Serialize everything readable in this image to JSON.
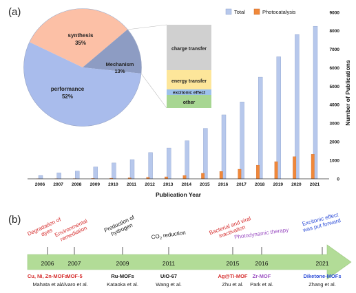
{
  "panel_a": {
    "label": "(a)"
  },
  "panel_b": {
    "label": "(b)"
  },
  "chart_data": [
    {
      "type": "bar",
      "categories": [
        "2006",
        "2007",
        "2008",
        "2009",
        "2010",
        "2011",
        "2012",
        "2013",
        "2014",
        "2015",
        "2016",
        "2017",
        "2018",
        "2019",
        "2020",
        "2021"
      ],
      "series": [
        {
          "name": "Total",
          "values": [
            180,
            320,
            420,
            640,
            860,
            1040,
            1420,
            1670,
            2060,
            2730,
            3460,
            4160,
            5500,
            6600,
            7800,
            8250
          ],
          "color": "#b7c8ec"
        },
        {
          "name": "Photocatalysis",
          "values": [
            5,
            10,
            15,
            22,
            35,
            55,
            80,
            110,
            180,
            300,
            400,
            520,
            740,
            930,
            1200,
            1330
          ],
          "color": "#f0883a"
        }
      ],
      "xlabel": "Publication Year",
      "ylabel": "Number of Publications",
      "ylim": [
        0,
        9000
      ],
      "yticks": [
        "0",
        "1000",
        "2000",
        "3000",
        "4000",
        "5000",
        "6000",
        "7000",
        "8000",
        "9000"
      ],
      "y_axis_side": "right",
      "legend_placement": "top-right",
      "grid": false
    },
    {
      "type": "pie",
      "slices": [
        {
          "label": "synthesis",
          "pct_label": "35%",
          "value": 35,
          "color": "#fcc0a6"
        },
        {
          "label": "Mechanism",
          "pct_label": "13%",
          "value": 13,
          "color": "#8d9cc3"
        },
        {
          "label": "performance",
          "pct_label": "52%",
          "value": 52,
          "color": "#a9bcec"
        }
      ]
    },
    {
      "type": "bar",
      "stacked": true,
      "breakdown_of": "Mechanism",
      "segments": [
        {
          "label": "charge transfer",
          "color": "#d0d0d0"
        },
        {
          "label": "energy transfer",
          "color": "#fde69a"
        },
        {
          "label": "excitonic effect",
          "color": "#9dc1ea"
        },
        {
          "label": "other",
          "color": "#a7d692"
        }
      ]
    }
  ],
  "timeline": {
    "arrow_color": "#b2dc97",
    "events": [
      {
        "year": "2006",
        "top_text": [
          "Degradation of",
          "dyes"
        ],
        "top_color": "#d62f2f",
        "mof": "Cu, Ni, Zn-MOFs",
        "mof_color": "#d62f2f",
        "author": "Mahata et al."
      },
      {
        "year": "2007",
        "top_text": [
          "Environmental",
          "remediation"
        ],
        "top_color": "#d62f2f",
        "mof": "MOF-5",
        "mof_color": "#d62f2f",
        "author": "Alvaro et al."
      },
      {
        "year": "2009",
        "top_text": [
          "Production of",
          "hydrogen"
        ],
        "top_color": "#111111",
        "mof": "Ru-MOFs",
        "mof_color": "#111111",
        "author": "Kataoka et al."
      },
      {
        "year": "2011",
        "top_text": [
          "CO",
          "2",
          " reduction"
        ],
        "top_color": "#111111",
        "mof": "UiO-67",
        "mof_color": "#111111",
        "author": "Wang et al."
      },
      {
        "year": "2015",
        "top_text": [
          "Bacterial and viral",
          "inactivation"
        ],
        "top_color": "#d62f2f",
        "mof": "Ag@Ti-MOF",
        "mof_color": "#d62f2f",
        "author": "Zhu et al."
      },
      {
        "year": "2016",
        "top_text": [
          "Photodynamic therapy"
        ],
        "top_color": "#9b4fc2",
        "mof": "Zr-MOF",
        "mof_color": "#9b4fc2",
        "author": "Park et al."
      },
      {
        "year": "2021",
        "top_text": [
          "Excitonic effect",
          "was put forward"
        ],
        "top_color": "#2f4fd8",
        "mof": "Diketone-MOFs",
        "mof_color": "#2f4fd8",
        "author": "Zhang et al."
      }
    ]
  }
}
